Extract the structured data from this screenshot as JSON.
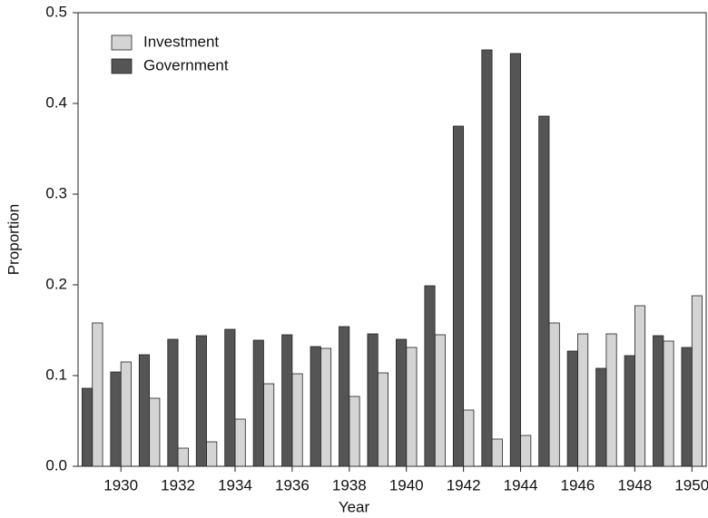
{
  "chart_data": {
    "type": "bar",
    "x_label": "Year",
    "y_label": "Proportion",
    "categories": [
      null,
      1930,
      null,
      1932,
      null,
      1934,
      null,
      1936,
      null,
      1938,
      null,
      1940,
      null,
      1942,
      null,
      1944,
      null,
      1946,
      null,
      1948,
      null,
      1950
    ],
    "series": [
      {
        "name": "Investment",
        "color": "#d4d4d4",
        "values": [
          0.158,
          0.115,
          0.075,
          0.02,
          0.027,
          0.052,
          0.091,
          0.102,
          0.13,
          0.077,
          0.103,
          0.131,
          0.145,
          0.062,
          0.03,
          0.034,
          0.158,
          0.146,
          0.146,
          0.177,
          0.138,
          0.188
        ]
      },
      {
        "name": "Government",
        "color": "#555555",
        "values": [
          0.086,
          0.104,
          0.123,
          0.14,
          0.144,
          0.151,
          0.139,
          0.145,
          0.132,
          0.154,
          0.146,
          0.14,
          0.199,
          0.375,
          0.459,
          0.455,
          0.386,
          0.127,
          0.108,
          0.122,
          0.144,
          0.131
        ]
      }
    ],
    "ylim": [
      0,
      0.5
    ],
    "yticks": [
      {
        "value": 0,
        "label": "0.0"
      },
      0.1,
      0.2,
      0.3,
      0.4,
      0.5
    ],
    "legend": "upper-left"
  }
}
